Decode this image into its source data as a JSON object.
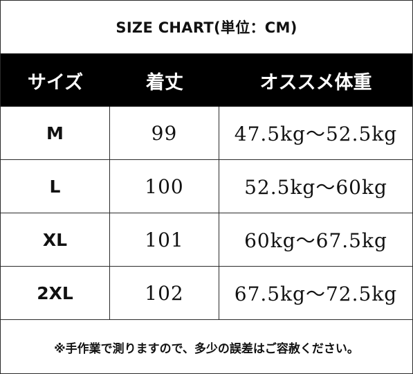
{
  "title": "SIZE CHART(単位：CM)",
  "headers": [
    "サイズ",
    "着丈",
    "オススメ体重"
  ],
  "rows": [
    {
      "size": "M",
      "length": "99",
      "weight": "47.5kg～52.5kg"
    },
    {
      "size": "L",
      "length": "100",
      "weight": "52.5kg～60kg"
    },
    {
      "size": "XL",
      "length": "101",
      "weight": "60kg～67.5kg"
    },
    {
      "size": "2XL",
      "length": "102",
      "weight": "67.5kg～72.5kg"
    }
  ],
  "note": "※手作業で測りますので、多少の誤差はご容赦ください。"
}
